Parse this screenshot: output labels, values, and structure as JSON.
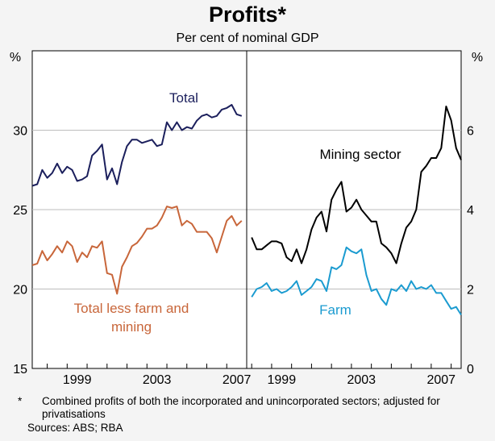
{
  "chart_data": {
    "type": "line",
    "title": "Profits*",
    "subtitle": "Per cent of nominal GDP",
    "panels": [
      {
        "name": "left",
        "ylabel": "%",
        "ylim": [
          15,
          35
        ],
        "yticks": [
          15,
          20,
          25,
          30
        ],
        "xlim": [
          1996.25,
          2007.0
        ],
        "xticks": [
          1999,
          2003,
          2007
        ],
        "series": [
          {
            "name": "Total",
            "color": "#1b1f5c",
            "x": [
              1996.25,
              1996.5,
              1996.75,
              1997.0,
              1997.25,
              1997.5,
              1997.75,
              1998.0,
              1998.25,
              1998.5,
              1998.75,
              1999.0,
              1999.25,
              1999.5,
              1999.75,
              2000.0,
              2000.25,
              2000.5,
              2000.75,
              2001.0,
              2001.25,
              2001.5,
              2001.75,
              2002.0,
              2002.25,
              2002.5,
              2002.75,
              2003.0,
              2003.25,
              2003.5,
              2003.75,
              2004.0,
              2004.25,
              2004.5,
              2004.75,
              2005.0,
              2005.25,
              2005.5,
              2005.75,
              2006.0,
              2006.25,
              2006.5,
              2006.75
            ],
            "values": [
              26.5,
              26.6,
              27.5,
              27.0,
              27.3,
              27.9,
              27.3,
              27.7,
              27.5,
              26.8,
              26.9,
              27.1,
              28.4,
              28.7,
              29.1,
              26.9,
              27.6,
              26.6,
              28.0,
              29.0,
              29.4,
              29.4,
              29.2,
              29.3,
              29.4,
              29.0,
              29.1,
              30.5,
              30.0,
              30.5,
              30.0,
              30.2,
              30.1,
              30.6,
              30.9,
              31.0,
              30.8,
              30.9,
              31.3,
              31.4,
              31.6,
              31.0,
              30.9
            ]
          },
          {
            "name": "Total less farm and mining",
            "color": "#c8663a",
            "x": [
              1996.25,
              1996.5,
              1996.75,
              1997.0,
              1997.25,
              1997.5,
              1997.75,
              1998.0,
              1998.25,
              1998.5,
              1998.75,
              1999.0,
              1999.25,
              1999.5,
              1999.75,
              2000.0,
              2000.25,
              2000.5,
              2000.75,
              2001.0,
              2001.25,
              2001.5,
              2001.75,
              2002.0,
              2002.25,
              2002.5,
              2002.75,
              2003.0,
              2003.25,
              2003.5,
              2003.75,
              2004.0,
              2004.25,
              2004.5,
              2004.75,
              2005.0,
              2005.25,
              2005.5,
              2005.75,
              2006.0,
              2006.25,
              2006.5,
              2006.75
            ],
            "values": [
              21.5,
              21.6,
              22.4,
              21.8,
              22.2,
              22.7,
              22.3,
              23.0,
              22.7,
              21.7,
              22.3,
              22.0,
              22.7,
              22.6,
              23.0,
              21.0,
              20.9,
              19.7,
              21.4,
              22.0,
              22.7,
              22.9,
              23.3,
              23.8,
              23.8,
              24.0,
              24.5,
              25.2,
              25.1,
              25.2,
              24.0,
              24.3,
              24.1,
              23.6,
              23.6,
              23.6,
              23.2,
              22.3,
              23.3,
              24.3,
              24.6,
              24.0,
              24.3
            ]
          }
        ]
      },
      {
        "name": "right",
        "ylabel": "%",
        "ylim": [
          0,
          8
        ],
        "yticks": [
          0,
          2,
          4,
          6
        ],
        "xlim": [
          1996.75,
          2007.5
        ],
        "xticks": [
          1999,
          2003,
          2007
        ],
        "series": [
          {
            "name": "Mining sector",
            "color": "#000000",
            "x": [
              1997.0,
              1997.25,
              1997.5,
              1997.75,
              1998.0,
              1998.25,
              1998.5,
              1998.75,
              1999.0,
              1999.25,
              1999.5,
              1999.75,
              2000.0,
              2000.25,
              2000.5,
              2000.75,
              2001.0,
              2001.25,
              2001.5,
              2001.75,
              2002.0,
              2002.25,
              2002.5,
              2002.75,
              2003.0,
              2003.25,
              2003.5,
              2003.75,
              2004.0,
              2004.25,
              2004.5,
              2004.75,
              2005.0,
              2005.25,
              2005.5,
              2005.75,
              2006.0,
              2006.25,
              2006.5,
              2006.75,
              2007.0,
              2007.25,
              2007.5
            ],
            "values": [
              3.3,
              3.0,
              3.0,
              3.1,
              3.2,
              3.2,
              3.15,
              2.8,
              2.7,
              3.0,
              2.65,
              3.0,
              3.5,
              3.8,
              3.95,
              3.45,
              4.25,
              4.5,
              4.7,
              3.95,
              4.05,
              4.25,
              4.0,
              3.85,
              3.7,
              3.7,
              3.15,
              3.05,
              2.9,
              2.65,
              3.15,
              3.55,
              3.7,
              4.0,
              4.95,
              5.1,
              5.3,
              5.3,
              5.55,
              6.6,
              6.25,
              5.55,
              5.25
            ]
          },
          {
            "name": "Farm",
            "color": "#1b9bd0",
            "x": [
              1997.0,
              1997.25,
              1997.5,
              1997.75,
              1998.0,
              1998.25,
              1998.5,
              1998.75,
              1999.0,
              1999.25,
              1999.5,
              1999.75,
              2000.0,
              2000.25,
              2000.5,
              2000.75,
              2001.0,
              2001.25,
              2001.5,
              2001.75,
              2002.0,
              2002.25,
              2002.5,
              2002.75,
              2003.0,
              2003.25,
              2003.5,
              2003.75,
              2004.0,
              2004.25,
              2004.5,
              2004.75,
              2005.0,
              2005.25,
              2005.5,
              2005.75,
              2006.0,
              2006.25,
              2006.5,
              2006.75,
              2007.0,
              2007.25,
              2007.5
            ],
            "values": [
              1.8,
              2.0,
              2.05,
              2.15,
              1.95,
              2.0,
              1.9,
              1.95,
              2.05,
              2.2,
              1.85,
              1.95,
              2.05,
              2.25,
              2.2,
              1.95,
              2.55,
              2.5,
              2.6,
              3.05,
              2.95,
              2.9,
              3.0,
              2.35,
              1.95,
              2.0,
              1.75,
              1.6,
              2.0,
              1.95,
              2.1,
              1.95,
              2.2,
              2.0,
              2.05,
              2.0,
              2.1,
              1.9,
              1.9,
              1.7,
              1.5,
              1.55,
              1.35
            ]
          }
        ]
      }
    ],
    "annotations": [
      {
        "text": "Total",
        "panel": "left"
      },
      {
        "text": "Total less farm and",
        "panel": "left"
      },
      {
        "text": "mining",
        "panel": "left"
      },
      {
        "text": "Mining sector",
        "panel": "right"
      },
      {
        "text": "Farm",
        "panel": "right"
      }
    ],
    "footnote_marker": "*",
    "footnote": "Combined profits of both the incorporated and unincorporated sectors; adjusted for privatisations",
    "sources": "Sources: ABS; RBA"
  }
}
